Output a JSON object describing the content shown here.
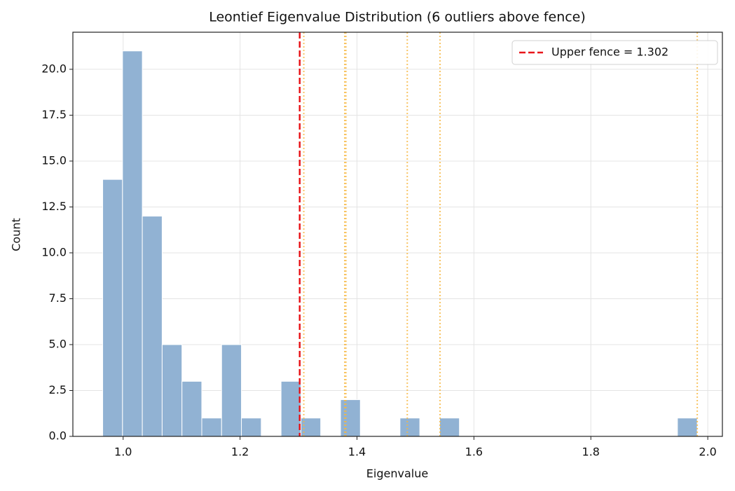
{
  "chart_data": {
    "type": "histogram",
    "title": "Leontief Eigenvalue Distribution (6 outliers above fence)",
    "xlabel": "Eigenvalue",
    "ylabel": "Count",
    "bins": [
      0.965,
      0.9989,
      1.0328,
      1.0667,
      1.1006,
      1.1345,
      1.1684,
      1.2023,
      1.2362,
      1.2701,
      1.304,
      1.3379,
      1.3718,
      1.4057,
      1.4396,
      1.4735,
      1.5074,
      1.5413,
      1.5752,
      1.6091,
      1.643,
      1.6769,
      1.7108,
      1.7447,
      1.7786,
      1.8125,
      1.8464,
      1.8803,
      1.9142,
      1.9481,
      1.982
    ],
    "counts": [
      14,
      21,
      12,
      5,
      3,
      1,
      5,
      1,
      0,
      3,
      1,
      0,
      2,
      0,
      0,
      1,
      0,
      1,
      0,
      0,
      0,
      0,
      0,
      0,
      0,
      0,
      0,
      0,
      0,
      1
    ],
    "color": "#91b2d3",
    "fence": {
      "value": 1.302,
      "label": "Upper fence = 1.302"
    },
    "fence_color": "#e8161b",
    "outliers": [
      1.309,
      1.379,
      1.381,
      1.486,
      1.542,
      1.982
    ],
    "outlier_color": "#f7b73f",
    "xlim": [
      0.914,
      2.025
    ],
    "ylim": [
      0,
      22.02
    ],
    "xticks": [
      {
        "value": 1.0,
        "label": "1.0"
      },
      {
        "value": 1.2,
        "label": "1.2"
      },
      {
        "value": 1.4,
        "label": "1.4"
      },
      {
        "value": 1.6,
        "label": "1.6"
      },
      {
        "value": 1.8,
        "label": "1.8"
      },
      {
        "value": 2.0,
        "label": "2.0"
      }
    ],
    "yticks": [
      {
        "value": 0,
        "label": "0.0"
      },
      2.5,
      {
        "value": 5,
        "label": "5.0"
      },
      7.5,
      {
        "value": 10,
        "label": "10.0"
      },
      12.5,
      {
        "value": 15,
        "label": "15.0"
      },
      17.5,
      {
        "value": 20,
        "label": "20.0"
      }
    ],
    "grid": true,
    "legend": "upper right"
  }
}
